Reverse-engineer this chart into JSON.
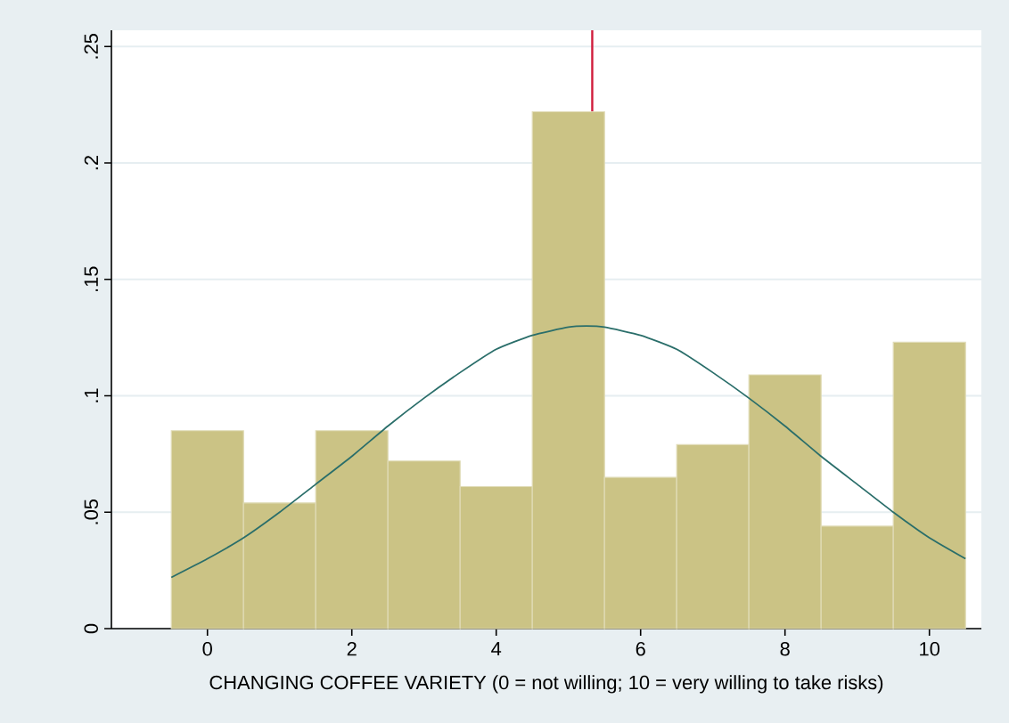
{
  "chart_data": {
    "type": "histogram",
    "xlabel": "CHANGING COFFEE VARIETY (0 = not willing; 10 = very willing to take risks)",
    "xlim": [
      -1.33,
      10.72
    ],
    "ylim": [
      0,
      0.257
    ],
    "xticks": [
      0,
      2,
      4,
      6,
      8,
      10
    ],
    "yticks": [
      0,
      {
        "value": 0.05,
        "label": ".05"
      },
      {
        "value": 0.1,
        "label": ".1"
      },
      {
        "value": 0.15,
        "label": ".15"
      },
      {
        "value": 0.2,
        "label": ".2"
      },
      {
        "value": 0.25,
        "label": ".25"
      }
    ],
    "grid": "y",
    "ref_lines": [
      {
        "axis": "x",
        "value": 5.33,
        "color": "#d01c3c"
      }
    ],
    "color": "#cbc385",
    "bins": [
      -0.5,
      0.5,
      1.5,
      2.5,
      3.5,
      4.5,
      5.5,
      6.5,
      7.5,
      8.5,
      9.5,
      10.5
    ],
    "values": [
      0.085,
      0.054,
      0.085,
      0.072,
      0.061,
      0.222,
      0.065,
      0.079,
      0.109,
      0.044,
      0.123
    ],
    "series": [
      {
        "type": "line",
        "color": "#2a6e6a",
        "x": [
          -0.5,
          0,
          0.5,
          1,
          1.5,
          2,
          2.5,
          3,
          3.5,
          4,
          4.5,
          5,
          5.25,
          5.5,
          6,
          6.5,
          7,
          7.5,
          8,
          8.5,
          9,
          9.5,
          10,
          10.5
        ],
        "values": [
          0.022,
          0.03,
          0.039,
          0.05,
          0.062,
          0.074,
          0.087,
          0.099,
          0.11,
          0.12,
          0.126,
          0.1295,
          0.13,
          0.1295,
          0.126,
          0.12,
          0.11,
          0.099,
          0.087,
          0.074,
          0.062,
          0.05,
          0.039,
          0.03
        ]
      }
    ]
  }
}
